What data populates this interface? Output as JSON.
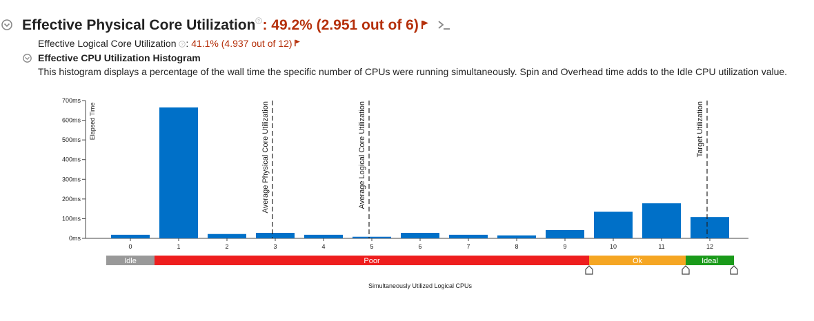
{
  "header": {
    "title": "Effective Physical Core Utilization",
    "title_value": "49.2% (2.951 out of 6)",
    "value_color": "#b5300b",
    "collapse_icon": "chevron-circle-icon",
    "flag_icon": "red-flag-icon",
    "terminal_icon": "terminal-prompt-icon"
  },
  "logical": {
    "label": "Effective Logical Core Utilization",
    "value": "41.1% (4.937 out of 12)"
  },
  "histogram": {
    "title": "Effective CPU Utilization Histogram",
    "description": "This histogram displays a percentage of the wall time the specific number of CPUs were running simultaneously. Spin and Overhead time adds to the Idle CPU utilization value."
  },
  "chart_data": {
    "type": "bar",
    "categories": [
      "0",
      "1",
      "2",
      "3",
      "4",
      "5",
      "6",
      "7",
      "8",
      "9",
      "10",
      "11",
      "12"
    ],
    "values": [
      18,
      665,
      22,
      28,
      18,
      8,
      28,
      18,
      15,
      42,
      135,
      178,
      108
    ],
    "ylabel": "Elapsed Time",
    "xlabel": "Simultaneously Utilized Logical CPUs",
    "ylim": [
      0,
      700
    ],
    "yticks": [
      0,
      100,
      200,
      300,
      400,
      500,
      600,
      700
    ],
    "ytick_labels": [
      "0ms",
      "100ms",
      "200ms",
      "300ms",
      "400ms",
      "500ms",
      "600ms",
      "700ms"
    ],
    "bar_color": "#0070c8",
    "reference_lines": [
      {
        "label": "Average Physical Core Utilization",
        "x": 3
      },
      {
        "label": "Average Logical Core Utilization",
        "x": 5
      },
      {
        "label": "Target Utilization",
        "x": 12
      }
    ],
    "bands": [
      {
        "label": "Idle",
        "from": 0,
        "to": 1,
        "color": "#999999"
      },
      {
        "label": "Poor",
        "from": 1,
        "to": 10,
        "color": "#ee1e1e"
      },
      {
        "label": "Ok",
        "from": 10,
        "to": 12,
        "color": "#f5a623"
      },
      {
        "label": "Ideal",
        "from": 12,
        "to": 13,
        "color": "#1a9a1a"
      }
    ],
    "band_handles": [
      10,
      12,
      13
    ]
  }
}
